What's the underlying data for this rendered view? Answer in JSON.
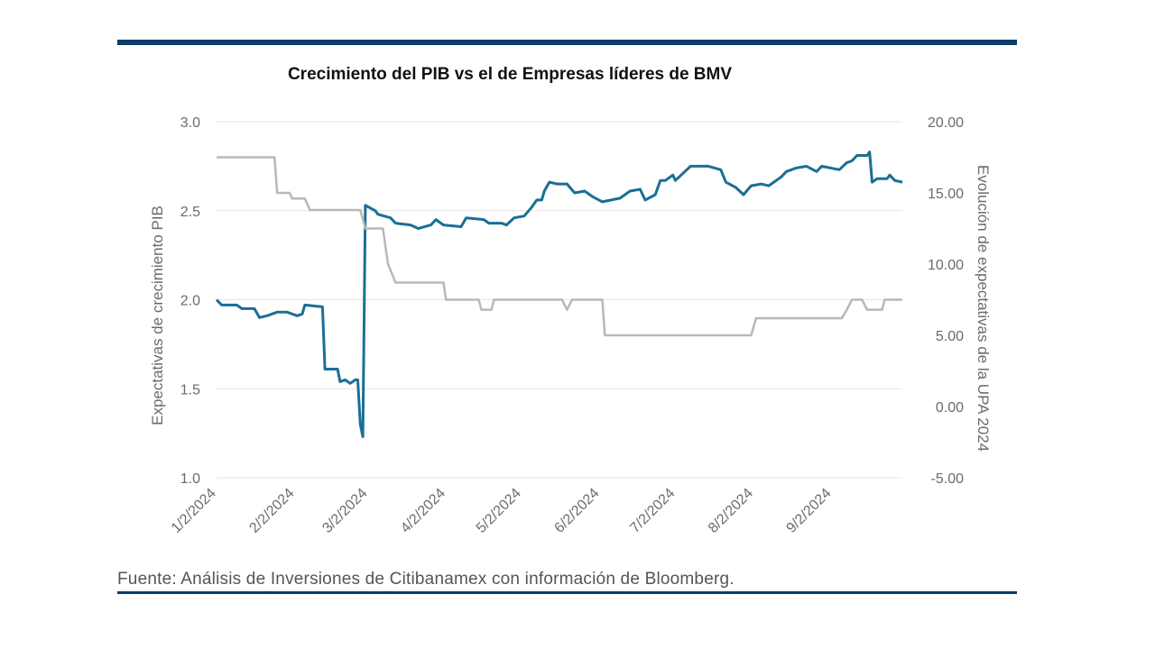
{
  "page": {
    "title": "Crecimiento del PIB vs el de Empresas líderes de BMV",
    "source": "Fuente: Análisis de Inversiones de Citibanamex con información de Bloomberg."
  },
  "colors": {
    "rule": "#0b3c6b",
    "gdp_line": "#1a6f96",
    "eps_line": "#b8b8b8",
    "grid": "#e6e6e6"
  },
  "chart_data": {
    "type": "line",
    "title": "Crecimiento del PIB vs el de Empresas líderes de BMV",
    "ylabel_left": "Expectativas de crecimiento PIB",
    "ylabel_right": "Evolución de expectativas de la UPA 2024",
    "ylim_left": [
      1.0,
      3.0
    ],
    "ylim_right": [
      -5.0,
      20.0
    ],
    "yticks_left": [
      "3.0",
      "2.5",
      "2.0",
      "1.5",
      "1.0"
    ],
    "yticks_right": [
      "20.00",
      "15.00",
      "10.00",
      "5.00",
      "0.00",
      "-5.00"
    ],
    "xticks": [
      "1/2/2024",
      "2/2/2024",
      "3/2/2024",
      "4/2/2024",
      "5/2/2024",
      "6/2/2024",
      "7/2/2024",
      "8/2/2024",
      "9/2/2024"
    ],
    "xlim": [
      "2024-01-02",
      "2024-09-30"
    ],
    "grid": true,
    "legend": "none",
    "series": [
      {
        "axis": "left",
        "values": [
          [
            "2024-01-02",
            2.0
          ],
          [
            "2024-01-04",
            1.97
          ],
          [
            "2024-01-10",
            1.97
          ],
          [
            "2024-01-12",
            1.95
          ],
          [
            "2024-01-17",
            1.95
          ],
          [
            "2024-01-19",
            1.9
          ],
          [
            "2024-01-22",
            1.91
          ],
          [
            "2024-01-26",
            1.93
          ],
          [
            "2024-01-30",
            1.93
          ],
          [
            "2024-02-01",
            1.92
          ],
          [
            "2024-02-03",
            1.91
          ],
          [
            "2024-02-05",
            1.92
          ],
          [
            "2024-02-06",
            1.97
          ],
          [
            "2024-02-13",
            1.96
          ],
          [
            "2024-02-14",
            1.61
          ],
          [
            "2024-02-17",
            1.61
          ],
          [
            "2024-02-19",
            1.61
          ],
          [
            "2024-02-20",
            1.54
          ],
          [
            "2024-02-22",
            1.55
          ],
          [
            "2024-02-24",
            1.53
          ],
          [
            "2024-02-26",
            1.55
          ],
          [
            "2024-02-27",
            1.55
          ],
          [
            "2024-02-28",
            1.3
          ],
          [
            "2024-02-29",
            1.23
          ],
          [
            "2024-03-01",
            2.53
          ],
          [
            "2024-03-05",
            2.5
          ],
          [
            "2024-03-06",
            2.48
          ],
          [
            "2024-03-11",
            2.46
          ],
          [
            "2024-03-13",
            2.43
          ],
          [
            "2024-03-19",
            2.42
          ],
          [
            "2024-03-22",
            2.4
          ],
          [
            "2024-03-27",
            2.42
          ],
          [
            "2024-03-29",
            2.45
          ],
          [
            "2024-04-01",
            2.42
          ],
          [
            "2024-04-08",
            2.41
          ],
          [
            "2024-04-10",
            2.46
          ],
          [
            "2024-04-17",
            2.45
          ],
          [
            "2024-04-19",
            2.43
          ],
          [
            "2024-04-24",
            2.43
          ],
          [
            "2024-04-26",
            2.42
          ],
          [
            "2024-04-29",
            2.46
          ],
          [
            "2024-05-03",
            2.47
          ],
          [
            "2024-05-06",
            2.52
          ],
          [
            "2024-05-08",
            2.56
          ],
          [
            "2024-05-10",
            2.56
          ],
          [
            "2024-05-11",
            2.61
          ],
          [
            "2024-05-13",
            2.66
          ],
          [
            "2024-05-16",
            2.65
          ],
          [
            "2024-05-20",
            2.65
          ],
          [
            "2024-05-23",
            2.6
          ],
          [
            "2024-05-27",
            2.61
          ],
          [
            "2024-05-30",
            2.58
          ],
          [
            "2024-06-03",
            2.55
          ],
          [
            "2024-06-10",
            2.57
          ],
          [
            "2024-06-14",
            2.61
          ],
          [
            "2024-06-18",
            2.62
          ],
          [
            "2024-06-20",
            2.56
          ],
          [
            "2024-06-24",
            2.59
          ],
          [
            "2024-06-26",
            2.67
          ],
          [
            "2024-06-28",
            2.67
          ],
          [
            "2024-07-01",
            2.7
          ],
          [
            "2024-07-02",
            2.67
          ],
          [
            "2024-07-08",
            2.75
          ],
          [
            "2024-07-15",
            2.75
          ],
          [
            "2024-07-20",
            2.73
          ],
          [
            "2024-07-22",
            2.66
          ],
          [
            "2024-07-26",
            2.63
          ],
          [
            "2024-07-29",
            2.59
          ],
          [
            "2024-08-01",
            2.64
          ],
          [
            "2024-08-05",
            2.65
          ],
          [
            "2024-08-08",
            2.64
          ],
          [
            "2024-08-13",
            2.69
          ],
          [
            "2024-08-15",
            2.72
          ],
          [
            "2024-08-19",
            2.74
          ],
          [
            "2024-08-23",
            2.75
          ],
          [
            "2024-08-27",
            2.72
          ],
          [
            "2024-08-29",
            2.75
          ],
          [
            "2024-09-05",
            2.73
          ],
          [
            "2024-09-08",
            2.77
          ],
          [
            "2024-09-10",
            2.78
          ],
          [
            "2024-09-12",
            2.81
          ],
          [
            "2024-09-16",
            2.81
          ],
          [
            "2024-09-17",
            2.83
          ],
          [
            "2024-09-18",
            2.66
          ],
          [
            "2024-09-20",
            2.68
          ],
          [
            "2024-09-24",
            2.68
          ],
          [
            "2024-09-25",
            2.7
          ],
          [
            "2024-09-27",
            2.67
          ],
          [
            "2024-09-30",
            2.66
          ]
        ]
      },
      {
        "axis": "right",
        "values": [
          [
            "2024-01-02",
            17.5
          ],
          [
            "2024-01-25",
            17.5
          ],
          [
            "2024-01-26",
            15.0
          ],
          [
            "2024-01-31",
            15.0
          ],
          [
            "2024-02-01",
            14.6
          ],
          [
            "2024-02-06",
            14.6
          ],
          [
            "2024-02-08",
            13.8
          ],
          [
            "2024-02-25",
            13.8
          ],
          [
            "2024-02-28",
            13.8
          ],
          [
            "2024-03-01",
            12.5
          ],
          [
            "2024-03-08",
            12.5
          ],
          [
            "2024-03-10",
            10.0
          ],
          [
            "2024-03-13",
            8.7
          ],
          [
            "2024-04-01",
            8.7
          ],
          [
            "2024-04-02",
            7.5
          ],
          [
            "2024-04-15",
            7.5
          ],
          [
            "2024-04-16",
            6.8
          ],
          [
            "2024-04-20",
            6.8
          ],
          [
            "2024-04-21",
            7.5
          ],
          [
            "2024-05-18",
            7.5
          ],
          [
            "2024-05-20",
            6.8
          ],
          [
            "2024-05-22",
            7.5
          ],
          [
            "2024-06-03",
            7.5
          ],
          [
            "2024-06-04",
            5.0
          ],
          [
            "2024-08-01",
            5.0
          ],
          [
            "2024-08-03",
            6.2
          ],
          [
            "2024-08-18",
            6.2
          ],
          [
            "2024-08-24",
            6.2
          ],
          [
            "2024-09-06",
            6.2
          ],
          [
            "2024-09-08",
            6.8
          ],
          [
            "2024-09-10",
            7.5
          ],
          [
            "2024-09-14",
            7.5
          ],
          [
            "2024-09-16",
            6.8
          ],
          [
            "2024-09-22",
            6.8
          ],
          [
            "2024-09-23",
            7.5
          ],
          [
            "2024-09-30",
            7.5
          ]
        ]
      }
    ]
  }
}
